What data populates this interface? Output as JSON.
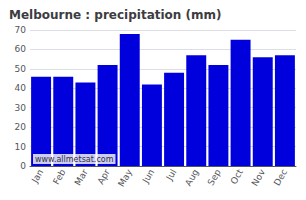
{
  "chart_data": {
    "type": "bar",
    "title": "Melbourne : precipitation (mm)",
    "categories": [
      "Jan",
      "Feb",
      "Mar",
      "Apr",
      "May",
      "Jun",
      "Jul",
      "Aug",
      "Sep",
      "Oct",
      "Nov",
      "Dec"
    ],
    "values": [
      46,
      46,
      43,
      52,
      68,
      42,
      48,
      57,
      52,
      65,
      56,
      57
    ],
    "color": "#0000dd",
    "ylim": [
      0,
      70
    ],
    "yticks": [
      0,
      10,
      20,
      30,
      40,
      50,
      60,
      70
    ],
    "grid": true,
    "annotation": "www.allmetsat.com"
  }
}
